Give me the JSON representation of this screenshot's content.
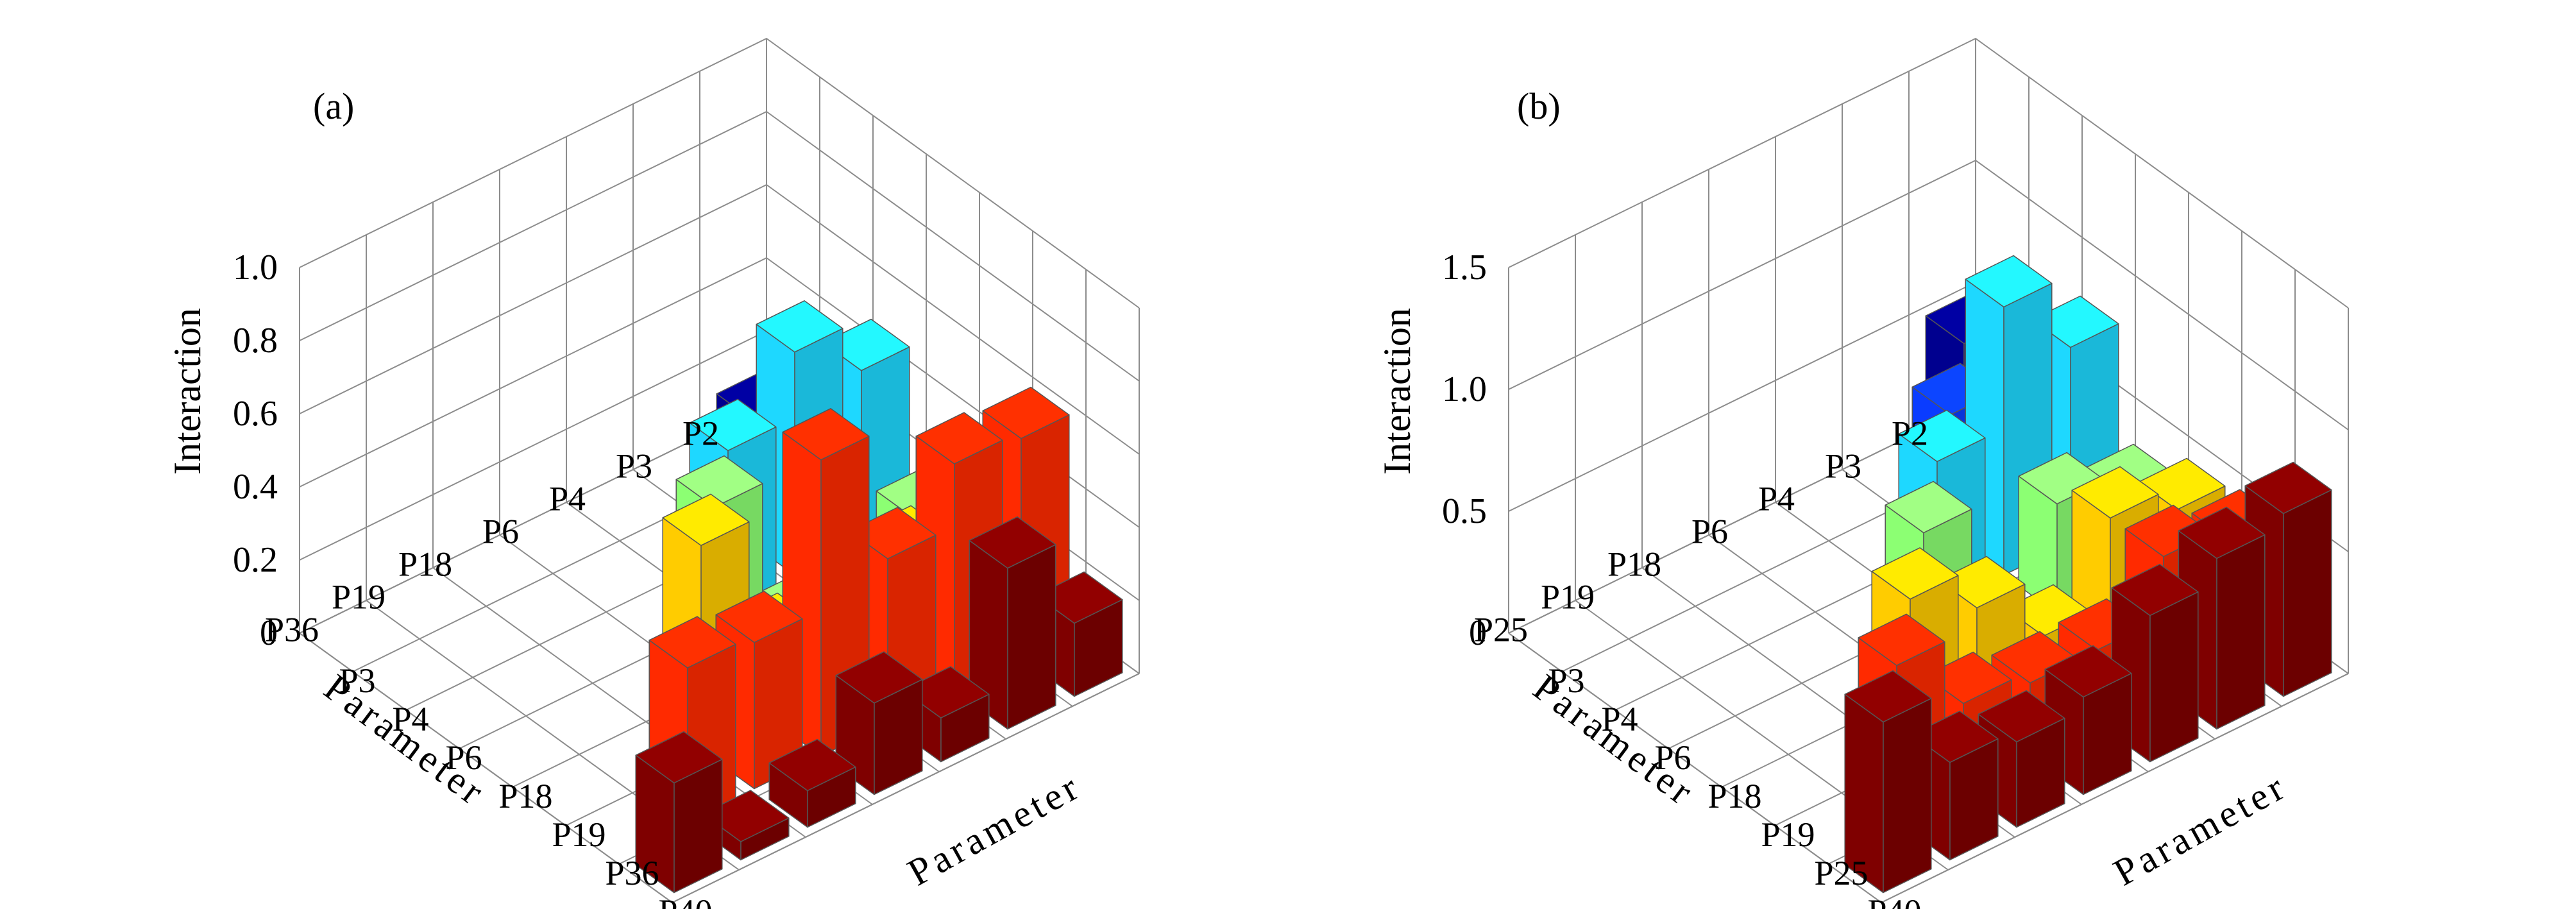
{
  "chart_data": [
    {
      "type": "bar3d",
      "panel_label": "(a)",
      "zlabel": "Interaction",
      "xlabel": "Parameter",
      "ylabel": "Parameter",
      "zlim": [
        0,
        1.0
      ],
      "zticks": [
        "0",
        "0.2",
        "0.4",
        "0.6",
        "0.8",
        "1.0"
      ],
      "ztick_values": [
        0,
        0.2,
        0.4,
        0.6,
        0.8,
        1.0
      ],
      "grid": true,
      "categories_x": [
        "P3",
        "P4",
        "P6",
        "P18",
        "P19",
        "P36",
        "P40"
      ],
      "categories_y": [
        "P2",
        "P3",
        "P4",
        "P6",
        "P18",
        "P19",
        "P36"
      ],
      "series_colors": [
        "#00008f",
        "#0a3cff",
        "#1ed8ff",
        "#8cff73",
        "#ffcc00",
        "#ff2a00",
        "#7f0000"
      ],
      "bars": [
        {
          "x": "P3",
          "y": "P2",
          "value": 0.12
        },
        {
          "x": "P4",
          "y": "P2",
          "value": 0.02
        },
        {
          "x": "P4",
          "y": "P3",
          "value": 0.12
        },
        {
          "x": "P6",
          "y": "P2",
          "value": 0.47
        },
        {
          "x": "P6",
          "y": "P3",
          "value": 0.61
        },
        {
          "x": "P6",
          "y": "P4",
          "value": 0.43
        },
        {
          "x": "P18",
          "y": "P2",
          "value": 0.17
        },
        {
          "x": "P18",
          "y": "P3",
          "value": 0.13
        },
        {
          "x": "P18",
          "y": "P4",
          "value": 0.05
        },
        {
          "x": "P18",
          "y": "P6",
          "value": 0.47
        },
        {
          "x": "P19",
          "y": "P2",
          "value": 0.31
        },
        {
          "x": "P19",
          "y": "P3",
          "value": 0.26
        },
        {
          "x": "P19",
          "y": "P4",
          "value": 0.02
        },
        {
          "x": "P19",
          "y": "P6",
          "value": 0.2
        },
        {
          "x": "P19",
          "y": "P18",
          "value": 0.56
        },
        {
          "x": "P36",
          "y": "P2",
          "value": 0.6
        },
        {
          "x": "P36",
          "y": "P3",
          "value": 0.62
        },
        {
          "x": "P36",
          "y": "P4",
          "value": 0.45
        },
        {
          "x": "P36",
          "y": "P6",
          "value": 0.81
        },
        {
          "x": "P36",
          "y": "P18",
          "value": 0.4
        },
        {
          "x": "P36",
          "y": "P19",
          "value": 0.42
        },
        {
          "x": "P40",
          "y": "P2",
          "value": 0.2
        },
        {
          "x": "P40",
          "y": "P3",
          "value": 0.44
        },
        {
          "x": "P40",
          "y": "P4",
          "value": 0.12
        },
        {
          "x": "P40",
          "y": "P6",
          "value": 0.25
        },
        {
          "x": "P40",
          "y": "P18",
          "value": 0.1
        },
        {
          "x": "P40",
          "y": "P19",
          "value": 0.05
        },
        {
          "x": "P40",
          "y": "P36",
          "value": 0.3
        }
      ]
    },
    {
      "type": "bar3d",
      "panel_label": "(b)",
      "zlabel": "Interaction",
      "xlabel": "Parameter",
      "ylabel": "Parameter",
      "zlim": [
        0,
        1.5
      ],
      "zticks": [
        "0",
        "0.5",
        "1.0",
        "1.5"
      ],
      "ztick_values": [
        0,
        0.5,
        1.0,
        1.5
      ],
      "grid": true,
      "categories_x": [
        "P3",
        "P4",
        "P6",
        "P18",
        "P19",
        "P25",
        "P40"
      ],
      "categories_y": [
        "P2",
        "P3",
        "P4",
        "P6",
        "P18",
        "P19",
        "P25"
      ],
      "series_colors": [
        "#00008f",
        "#0a3cff",
        "#1ed8ff",
        "#8cff73",
        "#ffcc00",
        "#ff2a00",
        "#7f0000"
      ],
      "bars": [
        {
          "x": "P3",
          "y": "P2",
          "value": 0.5
        },
        {
          "x": "P4",
          "y": "P2",
          "value": 0.03
        },
        {
          "x": "P4",
          "y": "P3",
          "value": 0.5
        },
        {
          "x": "P6",
          "y": "P2",
          "value": 0.8
        },
        {
          "x": "P6",
          "y": "P3",
          "value": 1.1
        },
        {
          "x": "P6",
          "y": "P4",
          "value": 0.6
        },
        {
          "x": "P18",
          "y": "P2",
          "value": 0.35
        },
        {
          "x": "P18",
          "y": "P3",
          "value": 0.45
        },
        {
          "x": "P18",
          "y": "P4",
          "value": 0.02
        },
        {
          "x": "P18",
          "y": "P6",
          "value": 0.6
        },
        {
          "x": "P19",
          "y": "P2",
          "value": 0.45
        },
        {
          "x": "P19",
          "y": "P3",
          "value": 0.55
        },
        {
          "x": "P19",
          "y": "P4",
          "value": 0.2
        },
        {
          "x": "P19",
          "y": "P6",
          "value": 0.45
        },
        {
          "x": "P19",
          "y": "P18",
          "value": 0.62
        },
        {
          "x": "P25",
          "y": "P2",
          "value": 0.48
        },
        {
          "x": "P25",
          "y": "P3",
          "value": 0.55
        },
        {
          "x": "P25",
          "y": "P4",
          "value": 0.3
        },
        {
          "x": "P25",
          "y": "P6",
          "value": 0.3
        },
        {
          "x": "P25",
          "y": "P18",
          "value": 0.35
        },
        {
          "x": "P25",
          "y": "P19",
          "value": 0.64
        },
        {
          "x": "P40",
          "y": "P2",
          "value": 0.75
        },
        {
          "x": "P40",
          "y": "P3",
          "value": 0.7
        },
        {
          "x": "P40",
          "y": "P4",
          "value": 0.6
        },
        {
          "x": "P40",
          "y": "P6",
          "value": 0.4
        },
        {
          "x": "P40",
          "y": "P18",
          "value": 0.35
        },
        {
          "x": "P40",
          "y": "P19",
          "value": 0.4
        },
        {
          "x": "P40",
          "y": "P25",
          "value": 0.7
        }
      ]
    }
  ]
}
